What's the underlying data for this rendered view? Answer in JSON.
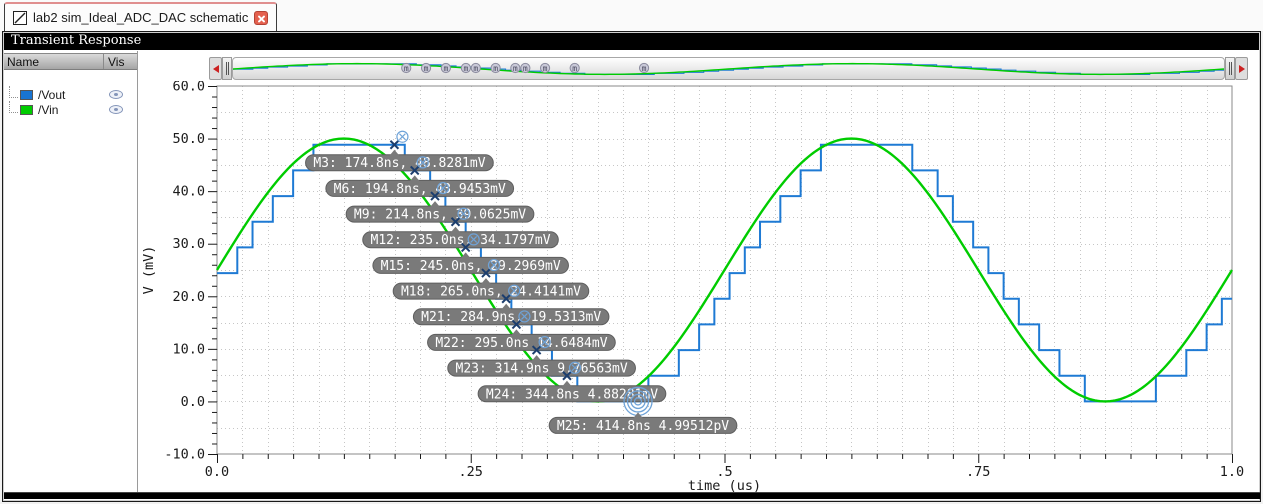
{
  "tab": {
    "title": "lab2 sim_Ideal_ADC_DAC schematic"
  },
  "window": {
    "title": "Transient Response"
  },
  "signal_panel": {
    "columns": {
      "name": "Name",
      "vis": "Vis"
    },
    "signals": [
      {
        "name": "/Vout",
        "color": "#1874d2"
      },
      {
        "name": "/Vin",
        "color": "#00cc00"
      }
    ]
  },
  "overview": {
    "bubble_letter": "m"
  },
  "chart_data": {
    "type": "line",
    "title": "Transient Response",
    "xlabel": "time (us)",
    "ylabel": "V (mV)",
    "xlim": [
      0,
      1.0
    ],
    "ylim": [
      -10,
      60
    ],
    "grid": "dotted",
    "x_ticks": [
      {
        "t": 0,
        "label": "0.0"
      },
      {
        "t": 0.25,
        "label": ".25"
      },
      {
        "t": 0.5,
        "label": ".5"
      },
      {
        "t": 0.75,
        "label": ".75"
      },
      {
        "t": 1.0,
        "label": "1.0"
      }
    ],
    "x_minor_step_us": 0.025,
    "y_ticks": [
      {
        "v": 60,
        "label": "60.0"
      },
      {
        "v": 50,
        "label": "50.0"
      },
      {
        "v": 40,
        "label": "40.0"
      },
      {
        "v": 30,
        "label": "30.0"
      },
      {
        "v": 20,
        "label": "20.0"
      },
      {
        "v": 10,
        "label": "10.0"
      },
      {
        "v": 0,
        "label": "0.0"
      },
      {
        "v": -10,
        "label": "-10.0"
      }
    ],
    "y_minor_step_mV": 2,
    "series": [
      {
        "name": "/Vout",
        "color": "#1e7ad4",
        "kind": "staircase_zero_order_hold",
        "lsb_mV": 4.88281,
        "sample_ns": 5,
        "delay_ns": 13,
        "levels": 11
      },
      {
        "name": "/Vin",
        "color": "#00cc00",
        "kind": "sine",
        "offset_mV": 25,
        "amplitude_mV": 25,
        "period_ns": 500
      }
    ],
    "markers": [
      {
        "id": "M3",
        "t_ns": 174.8,
        "v_mV": 48.8281,
        "label": "M3: 174.8ns, 48.8281mV",
        "glyph": "cross"
      },
      {
        "id": "M6",
        "t_ns": 194.8,
        "v_mV": 43.9453,
        "label": "M6: 194.8ns, 43.9453mV",
        "glyph": "cross"
      },
      {
        "id": "M9",
        "t_ns": 214.8,
        "v_mV": 39.0625,
        "label": "M9: 214.8ns, 39.0625mV",
        "glyph": "cross"
      },
      {
        "id": "M12",
        "t_ns": 235.0,
        "v_mV": 34.1797,
        "label": "M12: 235.0ns, 34.1797mV",
        "glyph": "cross"
      },
      {
        "id": "M15",
        "t_ns": 245.0,
        "v_mV": 29.2969,
        "label": "M15: 245.0ns, 29.2969mV",
        "glyph": "cross"
      },
      {
        "id": "M18",
        "t_ns": 265.0,
        "v_mV": 24.4141,
        "label": "M18: 265.0ns, 24.4141mV",
        "glyph": "cross"
      },
      {
        "id": "M21",
        "t_ns": 284.9,
        "v_mV": 19.5313,
        "label": "M21: 284.9ns, 19.5313mV",
        "glyph": "cross"
      },
      {
        "id": "M22",
        "t_ns": 295.0,
        "v_mV": 14.6484,
        "label": "M22: 295.0ns 14.6484mV",
        "glyph": "cross"
      },
      {
        "id": "M23",
        "t_ns": 314.9,
        "v_mV": 9.76563,
        "label": "M23: 314.9ns 9.76563mV",
        "glyph": "cross"
      },
      {
        "id": "M24",
        "t_ns": 344.8,
        "v_mV": 4.88281,
        "label": "M24: 344.8ns 4.88281mV",
        "glyph": "cross"
      },
      {
        "id": "M25",
        "t_ns": 414.8,
        "v_mV": 0.0,
        "label": "M25: 414.8ns 4.99512pV",
        "glyph": "rings"
      }
    ],
    "colors": {
      "marker_pill_bg": "#7a7a7a",
      "marker_pill_border": "#5e5e5e",
      "marker_pill_text": "#ffffff",
      "marker_cross_dark": "#1c3e6e",
      "marker_cross_light": "#6fa3d8",
      "grid": "#c6c6c6",
      "axis": "#1a1a1a"
    }
  }
}
